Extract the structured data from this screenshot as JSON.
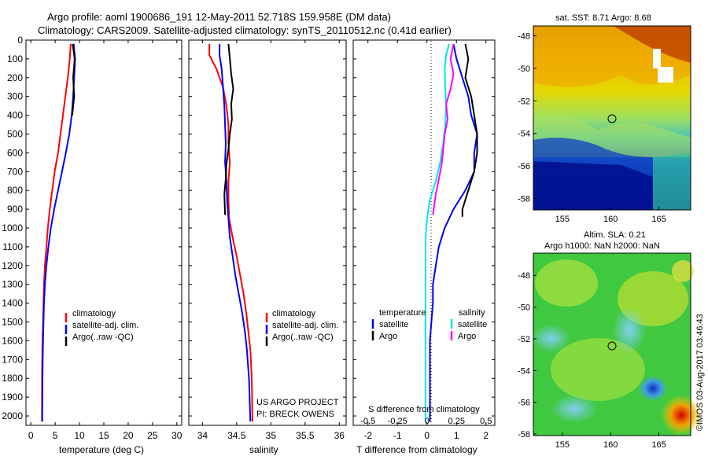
{
  "header": {
    "line1": "Argo profile: aoml 1900686_191 12-May-2011 52.718S 159.958E (DM data)",
    "line2": "Climatology: CARS2009. Satellite-adjusted climatology: synTS_20110512.nc (0.41d earlier)"
  },
  "colors": {
    "climatology": "#ff0000",
    "satellite": "#0000ff",
    "argo": "#000000",
    "s_satellite": "#00e5ee",
    "s_argo": "#ff00ff"
  },
  "legend": {
    "climatology": "climatology",
    "satellite": "satellite-adj. clim.",
    "argo": "Argo(..raw -QC)"
  },
  "legend_diff": {
    "temperature": "temperature",
    "salinity": "salinity",
    "t_satellite": "satellite",
    "t_argo": "Argo",
    "s_satellite": "satellite",
    "s_argo": "Argo"
  },
  "credits": {
    "project": "US ARGO PROJECT",
    "pi": "PI: BRECK OWENS"
  },
  "depth_ticks": [
    0,
    100,
    200,
    300,
    400,
    500,
    600,
    700,
    800,
    900,
    1000,
    1100,
    1200,
    1300,
    1400,
    1500,
    1600,
    1700,
    1800,
    1900,
    2000
  ],
  "chart_data": [
    {
      "type": "line",
      "xlabel": "temperature (deg C)",
      "xlim": [
        -1,
        31
      ],
      "ylim": [
        0,
        2050
      ],
      "xticks": [
        0,
        5,
        10,
        15,
        20,
        25,
        30
      ],
      "series": [
        {
          "name": "climatology",
          "x": [
            8.2,
            8.0,
            7.6,
            7.1,
            6.6,
            6.1,
            5.6,
            4.9,
            4.4,
            3.9,
            3.5,
            3.2,
            2.9,
            2.7,
            2.6,
            2.5,
            2.4,
            2.35,
            2.3,
            2.3
          ],
          "depth": [
            20,
            100,
            200,
            300,
            400,
            500,
            600,
            700,
            800,
            900,
            1000,
            1100,
            1200,
            1300,
            1400,
            1500,
            1600,
            1700,
            1800,
            2030
          ]
        },
        {
          "name": "satellite-adj. clim.",
          "x": [
            8.8,
            9.1,
            8.9,
            8.7,
            8.4,
            7.9,
            7.2,
            6.4,
            5.6,
            4.8,
            4.1,
            3.6,
            3.2,
            2.9,
            2.7,
            2.6,
            2.5,
            2.45,
            2.4,
            2.35
          ],
          "depth": [
            20,
            100,
            200,
            300,
            400,
            500,
            600,
            700,
            800,
            900,
            1000,
            1100,
            1200,
            1300,
            1400,
            1500,
            1600,
            1700,
            1800,
            2030
          ]
        },
        {
          "name": "Argo(..raw -QC)",
          "x": [
            8.6,
            9.0,
            8.7,
            8.9,
            8.5
          ],
          "depth": [
            20,
            100,
            200,
            300,
            400
          ]
        }
      ]
    },
    {
      "type": "line",
      "xlabel": "salinity",
      "xlim": [
        33.8,
        36.1
      ],
      "ylim": [
        0,
        2050
      ],
      "xticks": [
        34,
        34.5,
        35,
        35.5,
        36
      ],
      "series": [
        {
          "name": "climatology",
          "x": [
            34.1,
            34.1,
            34.2,
            34.3,
            34.35,
            34.38,
            34.38,
            34.4,
            34.38,
            34.38,
            34.39,
            34.44,
            34.5,
            34.55,
            34.6,
            34.64,
            34.67,
            34.7,
            34.72,
            34.73
          ],
          "depth": [
            20,
            80,
            150,
            250,
            350,
            450,
            550,
            650,
            750,
            850,
            950,
            1050,
            1150,
            1250,
            1350,
            1450,
            1550,
            1650,
            1800,
            2030
          ]
        },
        {
          "name": "satellite-adj. clim.",
          "x": [
            34.25,
            34.25,
            34.28,
            34.3,
            34.32,
            34.33,
            34.34,
            34.33,
            34.35,
            34.36,
            34.38,
            34.4,
            34.44,
            34.48,
            34.53,
            34.58,
            34.62,
            34.65,
            34.68,
            34.7
          ],
          "depth": [
            20,
            80,
            150,
            250,
            350,
            450,
            550,
            650,
            750,
            850,
            950,
            1050,
            1150,
            1250,
            1350,
            1450,
            1550,
            1650,
            1800,
            2030
          ]
        },
        {
          "name": "Argo(..raw -QC)",
          "x": [
            34.38,
            34.4,
            34.42,
            34.45,
            34.42,
            34.43,
            34.4,
            34.38,
            34.35,
            34.34,
            34.32,
            34.33
          ],
          "depth": [
            20,
            100,
            180,
            260,
            340,
            420,
            500,
            580,
            660,
            740,
            820,
            930
          ]
        }
      ]
    },
    {
      "type": "line",
      "xlabel": "T difference from climatology",
      "xlabel_top": "S difference from climatology",
      "xlim": [
        -2.5,
        2.3
      ],
      "ylim": [
        0,
        2050
      ],
      "xticks": [
        -2,
        -1,
        0,
        1,
        2
      ],
      "xticks_top": [
        "-0.5",
        "-0.25",
        "0",
        "0.25",
        "0.5"
      ],
      "series": [
        {
          "name": "T satellite",
          "x": [
            0.9,
            1.0,
            1.2,
            1.4,
            1.5,
            1.7,
            1.6,
            1.6,
            1.3,
            0.9,
            0.6,
            0.4,
            0.3,
            0.2,
            0.2,
            0.15,
            0.1,
            0.1,
            0.1,
            0.1
          ],
          "depth": [
            20,
            100,
            200,
            300,
            400,
            500,
            600,
            700,
            800,
            900,
            1000,
            1100,
            1200,
            1300,
            1400,
            1500,
            1600,
            1700,
            1800,
            2030
          ]
        },
        {
          "name": "T Argo",
          "x": [
            1.3,
            1.4,
            1.3,
            1.5,
            1.6,
            1.7,
            1.7,
            1.6,
            1.4,
            1.2,
            1.2
          ],
          "depth": [
            20,
            100,
            200,
            300,
            400,
            500,
            600,
            700,
            800,
            900,
            940
          ]
        },
        {
          "name": "S satellite",
          "x": [
            0.75,
            0.65,
            0.6,
            0.62,
            0.65,
            0.62,
            0.55,
            0.45,
            0.3,
            0.1,
            0.0,
            -0.05,
            -0.05,
            -0.05,
            -0.05,
            -0.05,
            -0.05,
            -0.05,
            -0.05,
            -0.05
          ],
          "depth": [
            20,
            80,
            150,
            250,
            350,
            450,
            550,
            650,
            750,
            850,
            950,
            1050,
            1150,
            1250,
            1350,
            1450,
            1550,
            1650,
            1800,
            2030
          ]
        },
        {
          "name": "S Argo",
          "x": [
            0.9,
            0.8,
            0.9,
            0.8,
            0.65,
            0.7,
            0.6,
            0.55,
            0.5,
            0.4,
            0.3,
            0.2
          ],
          "depth": [
            20,
            100,
            180,
            260,
            340,
            420,
            500,
            580,
            660,
            740,
            820,
            930
          ]
        }
      ]
    }
  ],
  "map_top": {
    "title": "sat. SST: 8.71  Argo: 8.68",
    "yticks": [
      "-48",
      "-50",
      "-52",
      "-54",
      "-56",
      "-58"
    ],
    "xticks": [
      "155",
      "160",
      "165"
    ]
  },
  "map_bottom": {
    "title1": "Altim. SLA: 0.21",
    "title2": "Argo h1000: NaN h2000: NaN",
    "yticks": [
      "-48",
      "-50",
      "-52",
      "-54",
      "-56",
      "-58"
    ],
    "xticks": [
      "155",
      "160",
      "165"
    ]
  },
  "watermark": "©IMOS 03-Aug-2017 03:46:43"
}
